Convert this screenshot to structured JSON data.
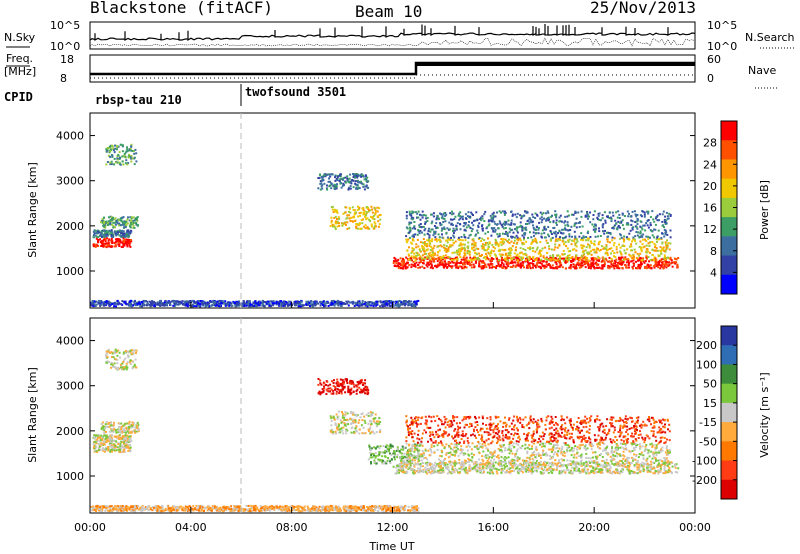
{
  "header": {
    "title_left": "Blackstone (fitACF)",
    "title_mid": "Beam 10",
    "title_right": "25/Nov/2013"
  },
  "ancillary": {
    "nsky_label": "N.Sky",
    "nsearch_label": "N.Search",
    "freq_label_top": "Freq.",
    "freq_label_bot": "[MHz]",
    "nave_label": "Nave",
    "cpid_label": "CPID",
    "nsky_ticks": [
      "10^5",
      "10^0"
    ],
    "nsearch_ticks": [
      "10^5",
      "10^0"
    ],
    "freq_ticks": [
      "18",
      "8"
    ],
    "nave_ticks": [
      "60",
      "0"
    ],
    "cpid_segments": [
      {
        "name": "rbsp-tau 210",
        "start_hour": 0
      },
      {
        "name": "twofsound 3501",
        "start_hour": 6
      }
    ]
  },
  "chart_data": [
    {
      "type": "heatmap",
      "name": "power",
      "xlabel": "",
      "ylabel": "Slant Range [km]",
      "xlim": [
        0,
        24
      ],
      "ylim": [
        180,
        4500
      ],
      "yticks": [
        "1000",
        "2000",
        "3000",
        "4000"
      ],
      "colorbar_label": "Power [dB]",
      "colorbar_ticks": [
        "28",
        "24",
        "20",
        "16",
        "12",
        "8",
        "4"
      ],
      "colorbar_colors": [
        "#ff0000",
        "#ff5000",
        "#ff9600",
        "#f0c800",
        "#9bcc3c",
        "#3c9e64",
        "#3c6ea0",
        "#3241a5",
        "#0000ff"
      ],
      "bands": [
        {
          "x0": 0.1,
          "x1": 1.6,
          "y": 1650,
          "w": 200,
          "cls": 0
        },
        {
          "x0": 0.1,
          "x1": 1.6,
          "y": 1850,
          "w": 160,
          "cls": 6
        },
        {
          "x0": 0.4,
          "x1": 1.9,
          "y": 2100,
          "w": 250,
          "cls": 5
        },
        {
          "x0": 0.6,
          "x1": 1.8,
          "y": 3600,
          "w": 450,
          "cls": 5
        },
        {
          "x0": 9.5,
          "x1": 11.5,
          "y": 2200,
          "w": 500,
          "cls": 3
        },
        {
          "x0": 9.0,
          "x1": 11.0,
          "y": 3000,
          "w": 350,
          "cls": 6
        },
        {
          "x0": 12.0,
          "x1": 23.3,
          "y": 1200,
          "w": 250,
          "cls": 0
        },
        {
          "x0": 12.5,
          "x1": 23.0,
          "y": 1500,
          "w": 500,
          "cls": 3
        },
        {
          "x0": 12.5,
          "x1": 23.0,
          "y": 2050,
          "w": 600,
          "cls": 6
        },
        {
          "x0": 0.0,
          "x1": 13.0,
          "y": 300,
          "w": 120,
          "cls": 7
        }
      ]
    },
    {
      "type": "heatmap",
      "name": "velocity",
      "xlabel": "Time UT",
      "ylabel": "Slant Range [km]",
      "xlim": [
        0,
        24
      ],
      "ylim": [
        180,
        4500
      ],
      "xticks": [
        "00:00",
        "04:00",
        "08:00",
        "12:00",
        "16:00",
        "20:00",
        "00:00"
      ],
      "yticks": [
        "1000",
        "2000",
        "3000",
        "4000"
      ],
      "colorbar_label": "Velocity [m s⁻¹]",
      "colorbar_ticks": [
        "200",
        "100",
        "50",
        "15",
        "-15",
        "-50",
        "-100",
        "-200"
      ],
      "colorbar_colors": [
        "#2838a0",
        "#2f6db5",
        "#3c8c3c",
        "#7cc83c",
        "#c8c8c8",
        "#ffaa3c",
        "#ff7800",
        "#ff3c14",
        "#dc0000"
      ],
      "bands": [
        {
          "x0": 0.1,
          "x1": 1.6,
          "y": 1650,
          "w": 200,
          "cls": 4
        },
        {
          "x0": 0.1,
          "x1": 1.6,
          "y": 1850,
          "w": 160,
          "cls": 4
        },
        {
          "x0": 0.4,
          "x1": 1.9,
          "y": 2100,
          "w": 250,
          "cls": 4
        },
        {
          "x0": 0.6,
          "x1": 1.8,
          "y": 3600,
          "w": 450,
          "cls": 4
        },
        {
          "x0": 9.5,
          "x1": 11.5,
          "y": 2200,
          "w": 500,
          "cls": 4
        },
        {
          "x0": 11.0,
          "x1": 13.0,
          "y": 1500,
          "w": 450,
          "cls": 3
        },
        {
          "x0": 12.0,
          "x1": 23.3,
          "y": 1200,
          "w": 250,
          "cls": 4
        },
        {
          "x0": 12.5,
          "x1": 23.0,
          "y": 1500,
          "w": 500,
          "cls": 4
        },
        {
          "x0": 12.5,
          "x1": 23.0,
          "y": 2050,
          "w": 600,
          "cls": 7
        },
        {
          "x0": 9.0,
          "x1": 11.0,
          "y": 3000,
          "w": 350,
          "cls": 8
        },
        {
          "x0": 0.0,
          "x1": 13.0,
          "y": 300,
          "w": 120,
          "cls": 5
        }
      ]
    }
  ]
}
